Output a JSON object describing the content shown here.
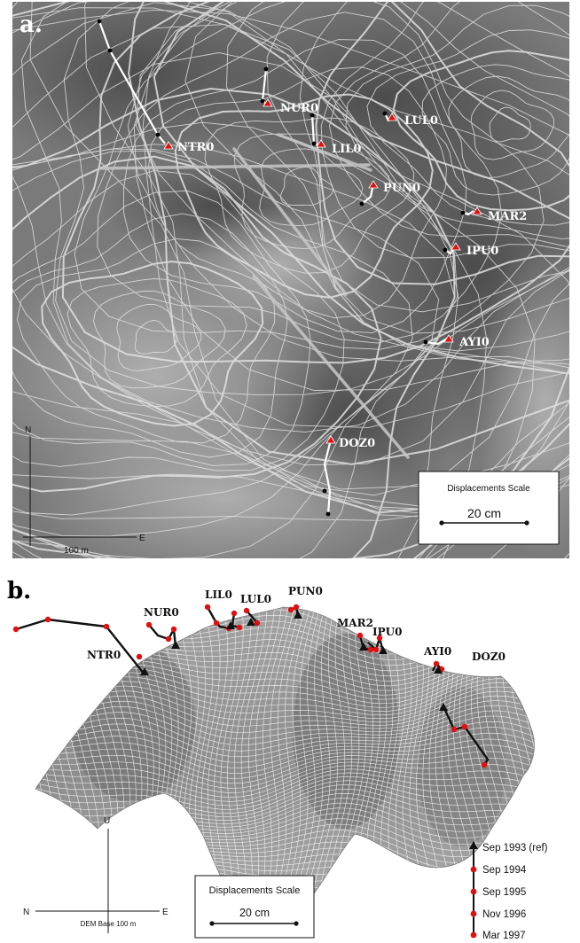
{
  "panel_a": {
    "letter": "a.",
    "stations": [
      "NTR0",
      "NUR0",
      "LIL0",
      "LUL0",
      "PUN0",
      "MAR2",
      "IPU0",
      "AYI0",
      "DOZ0"
    ],
    "compass_n": "N",
    "compass_e": "E",
    "distance": "100 m",
    "scale_title": "Displacements Scale",
    "scale_value": "20 cm"
  },
  "panel_b": {
    "letter": "b.",
    "stations": [
      "NTR0",
      "NUR0",
      "LIL0",
      "LUL0",
      "PUN0",
      "MAR2",
      "IPU0",
      "AYI0",
      "DOZ0"
    ],
    "axis_u": "U",
    "axis_n": "N",
    "axis_e": "E",
    "dem_base": "DEM Base 100 m",
    "scale_title": "Displacements Scale",
    "scale_value": "20 cm",
    "legend": [
      "Sep 1993 (ref)",
      "Sep 1994",
      "Sep 1995",
      "Nov 1996",
      "Mar 1997"
    ]
  },
  "colors": {
    "marker": "#e01010",
    "track_a": "#ffffff",
    "track_b": "#111111",
    "terrain_dark": "#5a5a5a"
  }
}
